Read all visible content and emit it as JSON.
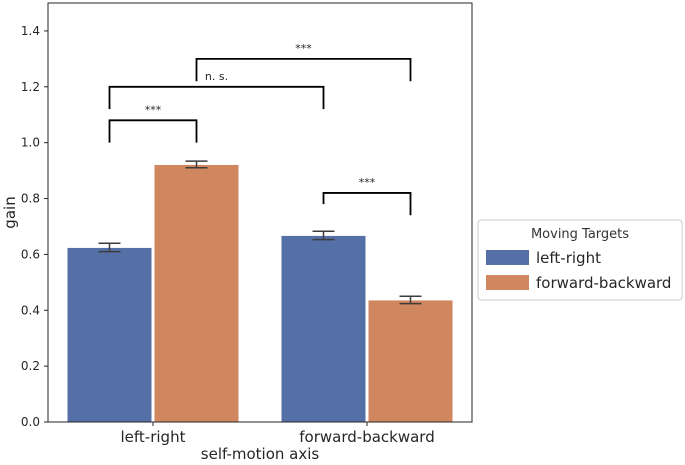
{
  "chart_data": {
    "type": "bar",
    "categories": [
      "left-right",
      "forward-backward"
    ],
    "xlabel": "self-motion axis",
    "ylabel": "gain",
    "ylim": [
      0,
      1.5
    ],
    "yticks": [
      0.0,
      0.2,
      0.4,
      0.6,
      0.8,
      1.0,
      1.2,
      1.4
    ],
    "ytick_labels": [
      "0.0",
      "0.2",
      "0.4",
      "0.6",
      "0.8",
      "1.0",
      "1.2",
      "1.4"
    ],
    "grid": false,
    "legend": {
      "title": "Moving Targets",
      "placement": "outside-right"
    },
    "series": [
      {
        "name": "left-right",
        "color": "#5470a6",
        "values": [
          0.625,
          0.668
        ],
        "error": [
          0.015,
          0.015
        ]
      },
      {
        "name": "forward-backward",
        "color": "#d0865e",
        "values": [
          0.922,
          0.437
        ],
        "error": [
          0.012,
          0.013
        ]
      }
    ],
    "significance": [
      {
        "label": "***",
        "from": [
          0,
          0
        ],
        "to": [
          0,
          1
        ],
        "y": 1.08,
        "drop_left": 0.08,
        "drop_right": 0.08
      },
      {
        "label": "n. s.",
        "from": [
          0,
          0
        ],
        "to": [
          1,
          0
        ],
        "y": 1.2,
        "drop_left": 0.08,
        "drop_right": 0.08
      },
      {
        "label": "***",
        "from": [
          0,
          1
        ],
        "to": [
          1,
          1
        ],
        "y": 1.3,
        "drop_left": 0.08,
        "drop_right": 0.08
      },
      {
        "label": "***",
        "from": [
          1,
          0
        ],
        "to": [
          1,
          1
        ],
        "y": 0.82,
        "drop_left": 0.04,
        "drop_right": 0.08
      }
    ]
  }
}
